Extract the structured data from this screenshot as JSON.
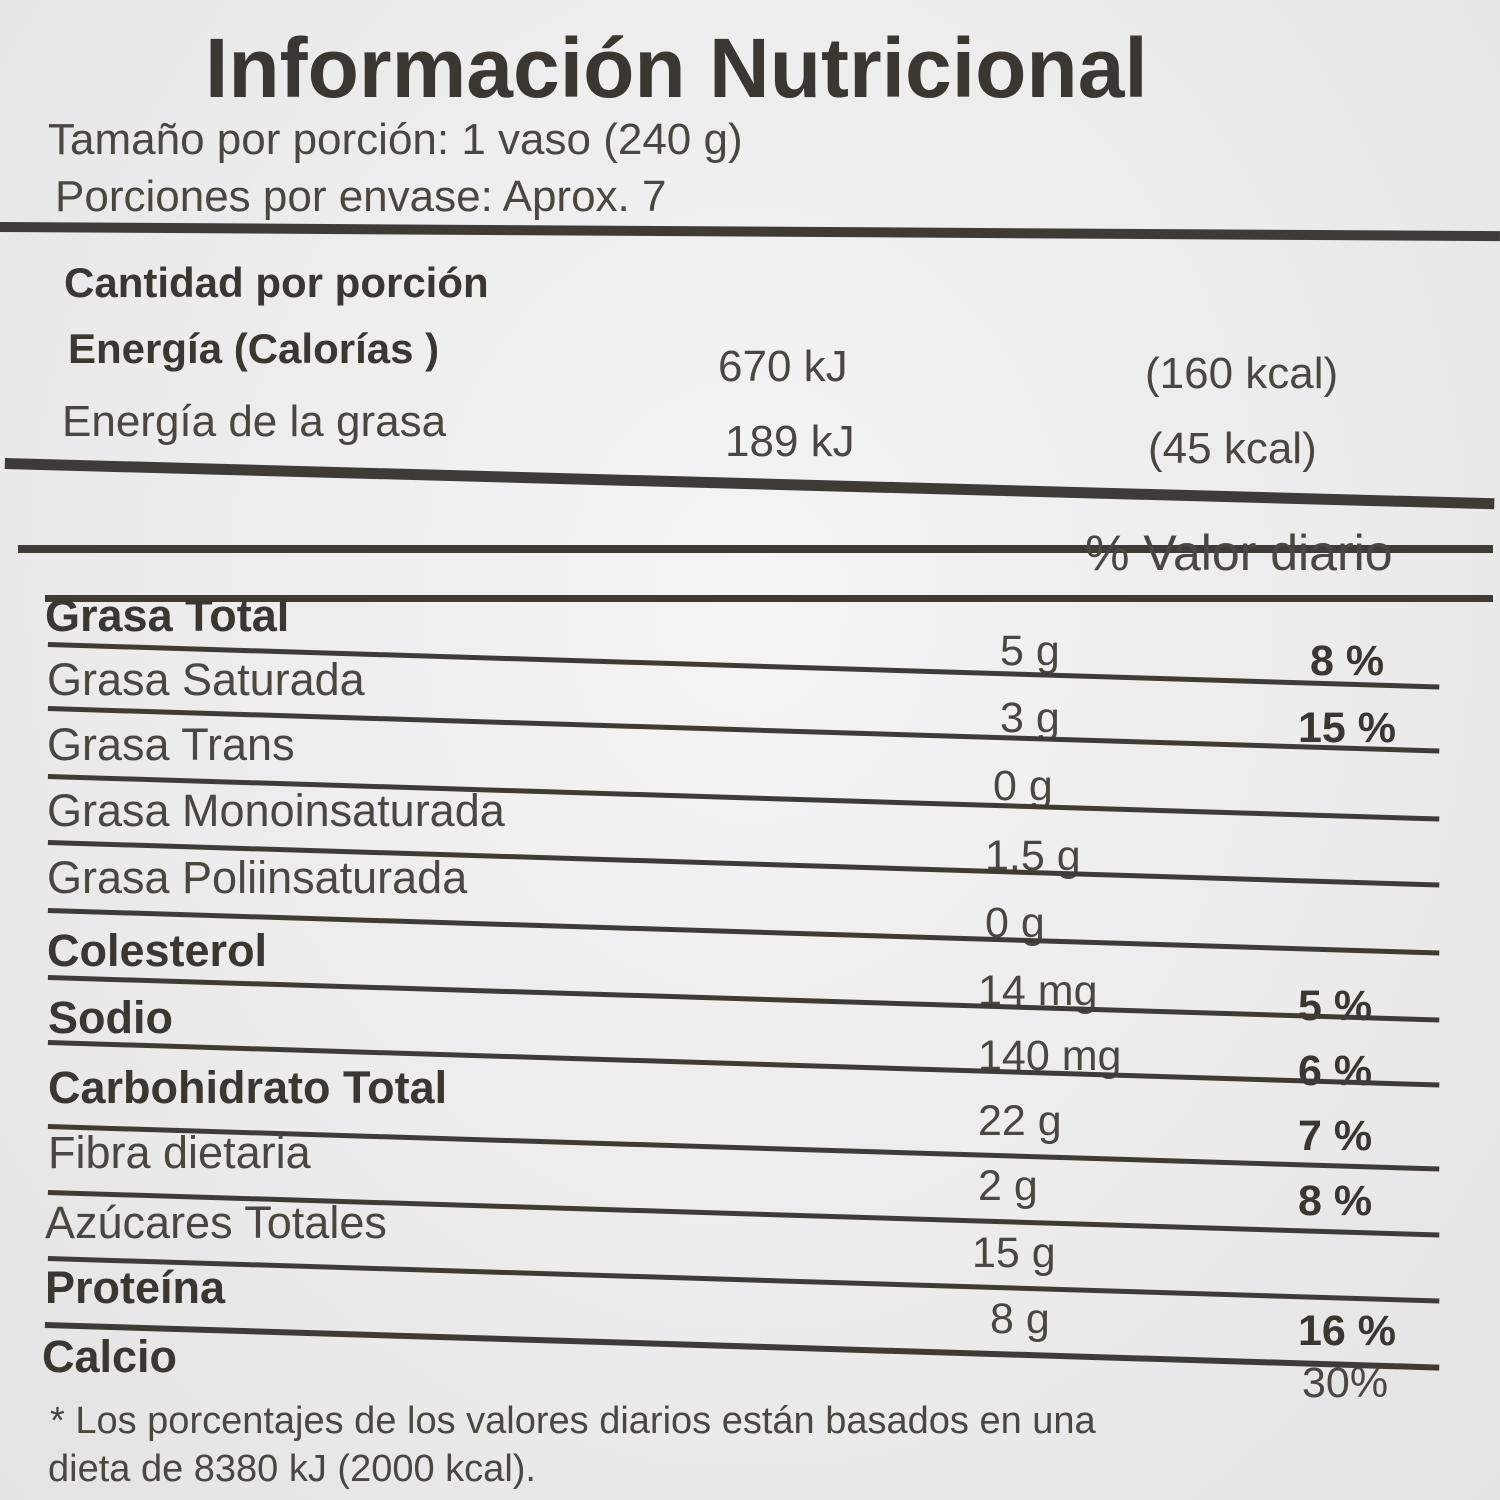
{
  "title": "Información Nutricional",
  "serving_size": "Tamaño por porción: 1 vaso (240 g)",
  "servings_per_container": "Porciones por envase: Aprox. 7",
  "amount_per_serving": "Cantidad por porción",
  "energy": {
    "label": "Energía  (Calorías )",
    "kj": "670 kJ",
    "kcal": "(160 kcal)"
  },
  "energy_fat": {
    "label": "Energía de la grasa",
    "kj": "189 kJ",
    "kcal": "(45 kcal)"
  },
  "daily_value_header": "% Valor diario",
  "nutrients": [
    {
      "name": "Grasa Total",
      "amount": "5 g",
      "dv": "8 %"
    },
    {
      "name": "Grasa Saturada",
      "amount": "3 g",
      "dv": "15 %"
    },
    {
      "name": "Grasa Trans",
      "amount": "0 g",
      "dv": ""
    },
    {
      "name": "Grasa Monoinsaturada",
      "amount": "1.5 g",
      "dv": ""
    },
    {
      "name": "Grasa Poliinsaturada",
      "amount": "0 g",
      "dv": ""
    },
    {
      "name": "Colesterol",
      "amount": "14 mg",
      "dv": "5 %"
    },
    {
      "name": "Sodio",
      "amount": "140 mg",
      "dv": "6 %"
    },
    {
      "name": "Carbohidrato Total",
      "amount": "22 g",
      "dv": "7 %"
    },
    {
      "name": "Fibra dietaria",
      "amount": "2 g",
      "dv": "8 %"
    },
    {
      "name": "Azúcares Totales",
      "amount": "15 g",
      "dv": ""
    },
    {
      "name": "Proteína",
      "amount": "8 g",
      "dv": "16 %"
    },
    {
      "name": "Calcio",
      "amount": "",
      "dv": "30%"
    }
  ],
  "footnote_line1": "* Los  porcentajes  de  los valores  diarios  están basados en una",
  "footnote_line2": "dieta  de 8380 kJ (2000  kcal)."
}
